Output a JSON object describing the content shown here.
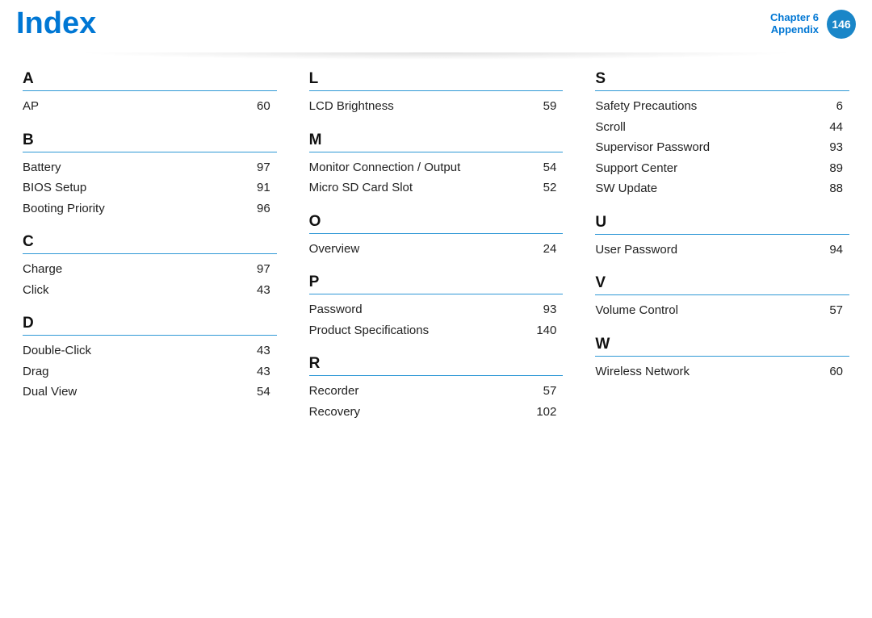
{
  "header": {
    "title": "Index",
    "chapter_line1": "Chapter 6",
    "chapter_line2": "Appendix",
    "page_number": "146",
    "accent_color": "#0077d4",
    "badge_bg": "#1a86c8"
  },
  "columns": [
    {
      "sections": [
        {
          "letter": "A",
          "entries": [
            {
              "term": "AP",
              "page": "60"
            }
          ]
        },
        {
          "letter": "B",
          "entries": [
            {
              "term": "Battery",
              "page": "97"
            },
            {
              "term": "BIOS Setup",
              "page": "91"
            },
            {
              "term": "Booting Priority",
              "page": "96"
            }
          ]
        },
        {
          "letter": "C",
          "entries": [
            {
              "term": "Charge",
              "page": "97"
            },
            {
              "term": "Click",
              "page": "43"
            }
          ]
        },
        {
          "letter": "D",
          "entries": [
            {
              "term": "Double-Click",
              "page": "43"
            },
            {
              "term": "Drag",
              "page": "43"
            },
            {
              "term": "Dual View",
              "page": "54"
            }
          ]
        }
      ]
    },
    {
      "sections": [
        {
          "letter": "L",
          "entries": [
            {
              "term": "LCD Brightness",
              "page": "59"
            }
          ]
        },
        {
          "letter": "M",
          "entries": [
            {
              "term": "Monitor Connection / Output",
              "page": "54"
            },
            {
              "term": "Micro SD Card Slot",
              "page": "52"
            }
          ]
        },
        {
          "letter": "O",
          "entries": [
            {
              "term": "Overview",
              "page": "24"
            }
          ]
        },
        {
          "letter": "P",
          "entries": [
            {
              "term": "Password",
              "page": "93"
            },
            {
              "term": "Product Specifications",
              "page": "140"
            }
          ]
        },
        {
          "letter": "R",
          "entries": [
            {
              "term": "Recorder",
              "page": "57"
            },
            {
              "term": "Recovery",
              "page": "102"
            }
          ]
        }
      ]
    },
    {
      "sections": [
        {
          "letter": "S",
          "entries": [
            {
              "term": "Safety Precautions",
              "page": "6"
            },
            {
              "term": "Scroll",
              "page": "44"
            },
            {
              "term": "Supervisor Password",
              "page": "93"
            },
            {
              "term": "Support Center",
              "page": "89"
            },
            {
              "term": "SW Update",
              "page": "88"
            }
          ]
        },
        {
          "letter": "U",
          "entries": [
            {
              "term": "User Password",
              "page": "94"
            }
          ]
        },
        {
          "letter": "V",
          "entries": [
            {
              "term": "Volume Control",
              "page": "57"
            }
          ]
        },
        {
          "letter": "W",
          "entries": [
            {
              "term": "Wireless Network",
              "page": "60"
            }
          ]
        }
      ]
    }
  ]
}
